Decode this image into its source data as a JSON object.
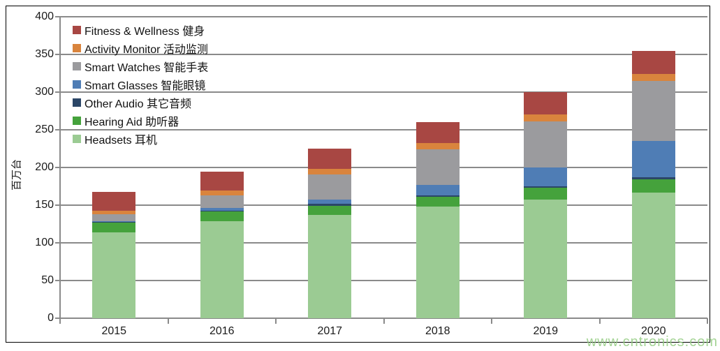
{
  "watermark": "www.cntronics.com",
  "chart_data": {
    "type": "bar",
    "stacked": true,
    "title": "",
    "xlabel": "",
    "ylabel": "百万台",
    "ylim": [
      0,
      400
    ],
    "ytick_step": 50,
    "grid": true,
    "legend_position": "top-left",
    "categories": [
      "2015",
      "2016",
      "2017",
      "2018",
      "2019",
      "2020"
    ],
    "series": [
      {
        "name": "Headsets",
        "label": "Headsets 耳机",
        "color": "#9BCB93",
        "values": [
          114,
          129,
          137,
          148,
          157,
          167
        ]
      },
      {
        "name": "Hearing Aid",
        "label": "Hearing Aid   助听器",
        "color": "#45A23C",
        "values": [
          13,
          13,
          12,
          13,
          16,
          17
        ]
      },
      {
        "name": "Other Audio",
        "label": "Other Audio   其它音频",
        "color": "#2B4667",
        "values": [
          1,
          1,
          3,
          2,
          2,
          3
        ]
      },
      {
        "name": "Smart Glasses",
        "label": "Smart Glasses   智能眼镜",
        "color": "#4F7DB5",
        "values": [
          1,
          3,
          5,
          14,
          25,
          48
        ]
      },
      {
        "name": "Smart Watches",
        "label": "Smart Watches  智能手表",
        "color": "#9B9B9E",
        "values": [
          9,
          17,
          34,
          47,
          61,
          80
        ]
      },
      {
        "name": "Activity Monitor",
        "label": "Activity Monitor  活动监测",
        "color": "#D9843D",
        "values": [
          5,
          6,
          7,
          8,
          9,
          9
        ]
      },
      {
        "name": "Fitness & Wellness",
        "label": "Fitness & Wellness  健身",
        "color": "#A84743",
        "values": [
          25,
          25,
          27,
          28,
          30,
          31
        ]
      }
    ],
    "totals": [
      168,
      194,
      225,
      260,
      300,
      355
    ],
    "colors": {
      "gridline": "#8a8a8a",
      "axis": "#8a8a8a",
      "text": "#1a1a1a",
      "watermark": "#94CD83"
    }
  }
}
